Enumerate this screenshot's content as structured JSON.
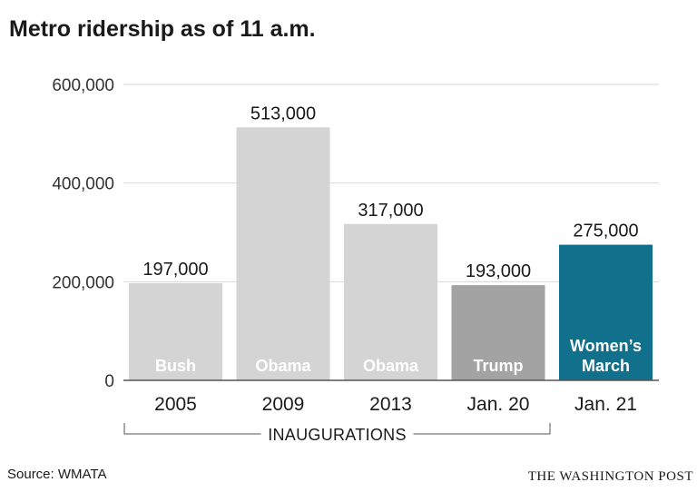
{
  "title": "Metro ridership as of 11 a.m.",
  "source": "Source: WMATA",
  "credit": "THE WASHINGTON POST",
  "chart_data": {
    "type": "bar",
    "categories": [
      "2005",
      "2009",
      "2013",
      "Jan. 20",
      "Jan. 21"
    ],
    "values": [
      197000,
      513000,
      317000,
      193000,
      275000
    ],
    "value_labels": [
      "197,000",
      "513,000",
      "317,000",
      "193,000",
      "275,000"
    ],
    "bar_labels": [
      [
        "Bush"
      ],
      [
        "Obama"
      ],
      [
        "Obama"
      ],
      [
        "Trump"
      ],
      [
        "Women’s",
        "March"
      ]
    ],
    "bar_colors": [
      "#d4d4d4",
      "#d4d4d4",
      "#d4d4d4",
      "#a3a3a3",
      "#11708c"
    ],
    "ylim": [
      0,
      600000
    ],
    "yticks": [
      0,
      200000,
      400000,
      600000
    ],
    "ytick_labels": [
      "0",
      "200,000",
      "400,000",
      "600,000"
    ],
    "group_label": "INAUGURATIONS",
    "grid": true,
    "xlabel": "",
    "ylabel": ""
  }
}
